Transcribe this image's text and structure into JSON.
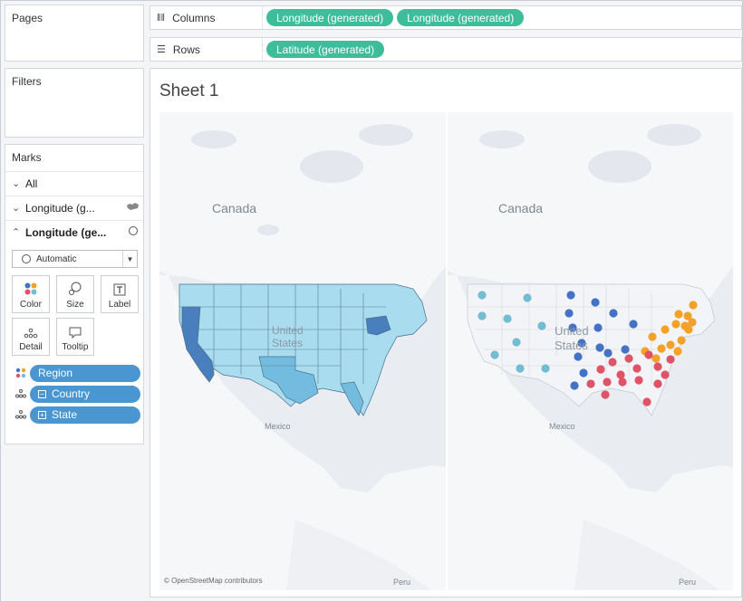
{
  "left_panel": {
    "pages_title": "Pages",
    "filters_title": "Filters",
    "marks_title": "Marks",
    "rows": [
      {
        "label": "All",
        "chevron": "down",
        "icon": ""
      },
      {
        "label": "Longitude (g...",
        "chevron": "down",
        "icon": "map-icon"
      },
      {
        "label": "Longitude (ge...",
        "chevron": "up",
        "icon": "circle-icon"
      }
    ],
    "mark_type": "Automatic",
    "buttons": {
      "color": "Color",
      "size": "Size",
      "label": "Label",
      "detail": "Detail",
      "tooltip": "Tooltip"
    },
    "pills": [
      {
        "label": "Region",
        "icon": "color-icon"
      },
      {
        "label": "Country",
        "icon": "detail-icon",
        "toggle": "minus"
      },
      {
        "label": "State",
        "icon": "detail-icon",
        "toggle": "plus"
      }
    ]
  },
  "shelves": {
    "columns_label": "Columns",
    "columns_pills": [
      "Longitude (generated)",
      "Longitude (generated)"
    ],
    "rows_label": "Rows",
    "rows_pills": [
      "Latitude (generated)"
    ]
  },
  "sheet": {
    "title": "Sheet 1",
    "map_labels": {
      "canada": "Canada",
      "united": "United",
      "states": "States",
      "mexico": "Mexico",
      "peru": "Peru"
    },
    "attribution": "© OpenStreetMap contributors"
  },
  "colors": {
    "columns_pill": "#3dbd9a",
    "marks_pill": "#4996d1",
    "west": "#74bcd1",
    "central": "#4472c4",
    "east": "#f4a12a",
    "south": "#e05266"
  }
}
